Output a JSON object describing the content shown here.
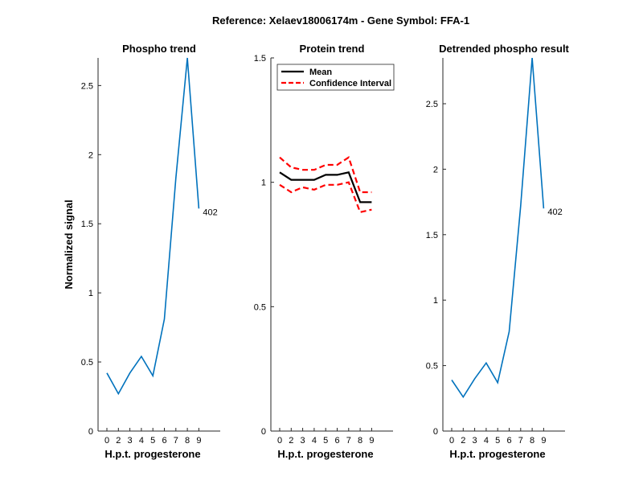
{
  "figure": {
    "title": "Reference:  Xelaev18006174m - Gene Symbol:  FFA-1"
  },
  "chart_data": [
    {
      "type": "line",
      "title": "Phospho trend",
      "xlabel": "H.p.t. progesterone",
      "ylabel": "Normalized signal",
      "xticks": [
        "0",
        "2",
        "3",
        "4",
        "5",
        "6",
        "7",
        "8",
        "9"
      ],
      "yticks": [
        "0",
        "0.5",
        "1",
        "1.5",
        "2",
        "2.5"
      ],
      "ylim": [
        0,
        2.7
      ],
      "color": "#0072BD",
      "series": [
        {
          "values": [
            0.42,
            0.27,
            0.42,
            0.54,
            0.4,
            0.81,
            1.83,
            2.7,
            1.61
          ]
        }
      ],
      "annotation": "402"
    },
    {
      "type": "line",
      "title": "Protein trend",
      "xlabel": "H.p.t. progesterone",
      "ylabel": "",
      "xticks": [
        "0",
        "2",
        "3",
        "4",
        "5",
        "6",
        "7",
        "8",
        "9"
      ],
      "yticks": [
        "0",
        "0.5",
        "1",
        "1.5"
      ],
      "ylim": [
        0,
        1.5
      ],
      "legend_position": "top-left",
      "series": [
        {
          "name": "Mean",
          "color": "#000000",
          "style": "solid",
          "values": [
            1.04,
            1.01,
            1.01,
            1.01,
            1.03,
            1.03,
            1.04,
            0.92,
            0.92
          ]
        },
        {
          "name": "Confidence Interval",
          "color": "#FF0000",
          "style": "dashed",
          "values": [
            1.1,
            1.06,
            1.05,
            1.05,
            1.07,
            1.07,
            1.1,
            0.96,
            0.96
          ]
        },
        {
          "color": "#FF0000",
          "style": "dashed",
          "values": [
            0.99,
            0.96,
            0.98,
            0.97,
            0.99,
            0.99,
            1.0,
            0.88,
            0.89
          ]
        }
      ]
    },
    {
      "type": "line",
      "title": "Detrended phospho result",
      "xlabel": "H.p.t. progesterone",
      "ylabel": "",
      "xticks": [
        "0",
        "2",
        "3",
        "4",
        "5",
        "6",
        "7",
        "8",
        "9"
      ],
      "yticks": [
        "0",
        "0.5",
        "1",
        "1.5",
        "2",
        "2.5"
      ],
      "ylim": [
        0,
        2.85
      ],
      "color": "#0072BD",
      "series": [
        {
          "values": [
            0.39,
            0.26,
            0.4,
            0.52,
            0.37,
            0.76,
            1.72,
            2.85,
            1.7
          ]
        }
      ],
      "annotation": "402"
    }
  ]
}
